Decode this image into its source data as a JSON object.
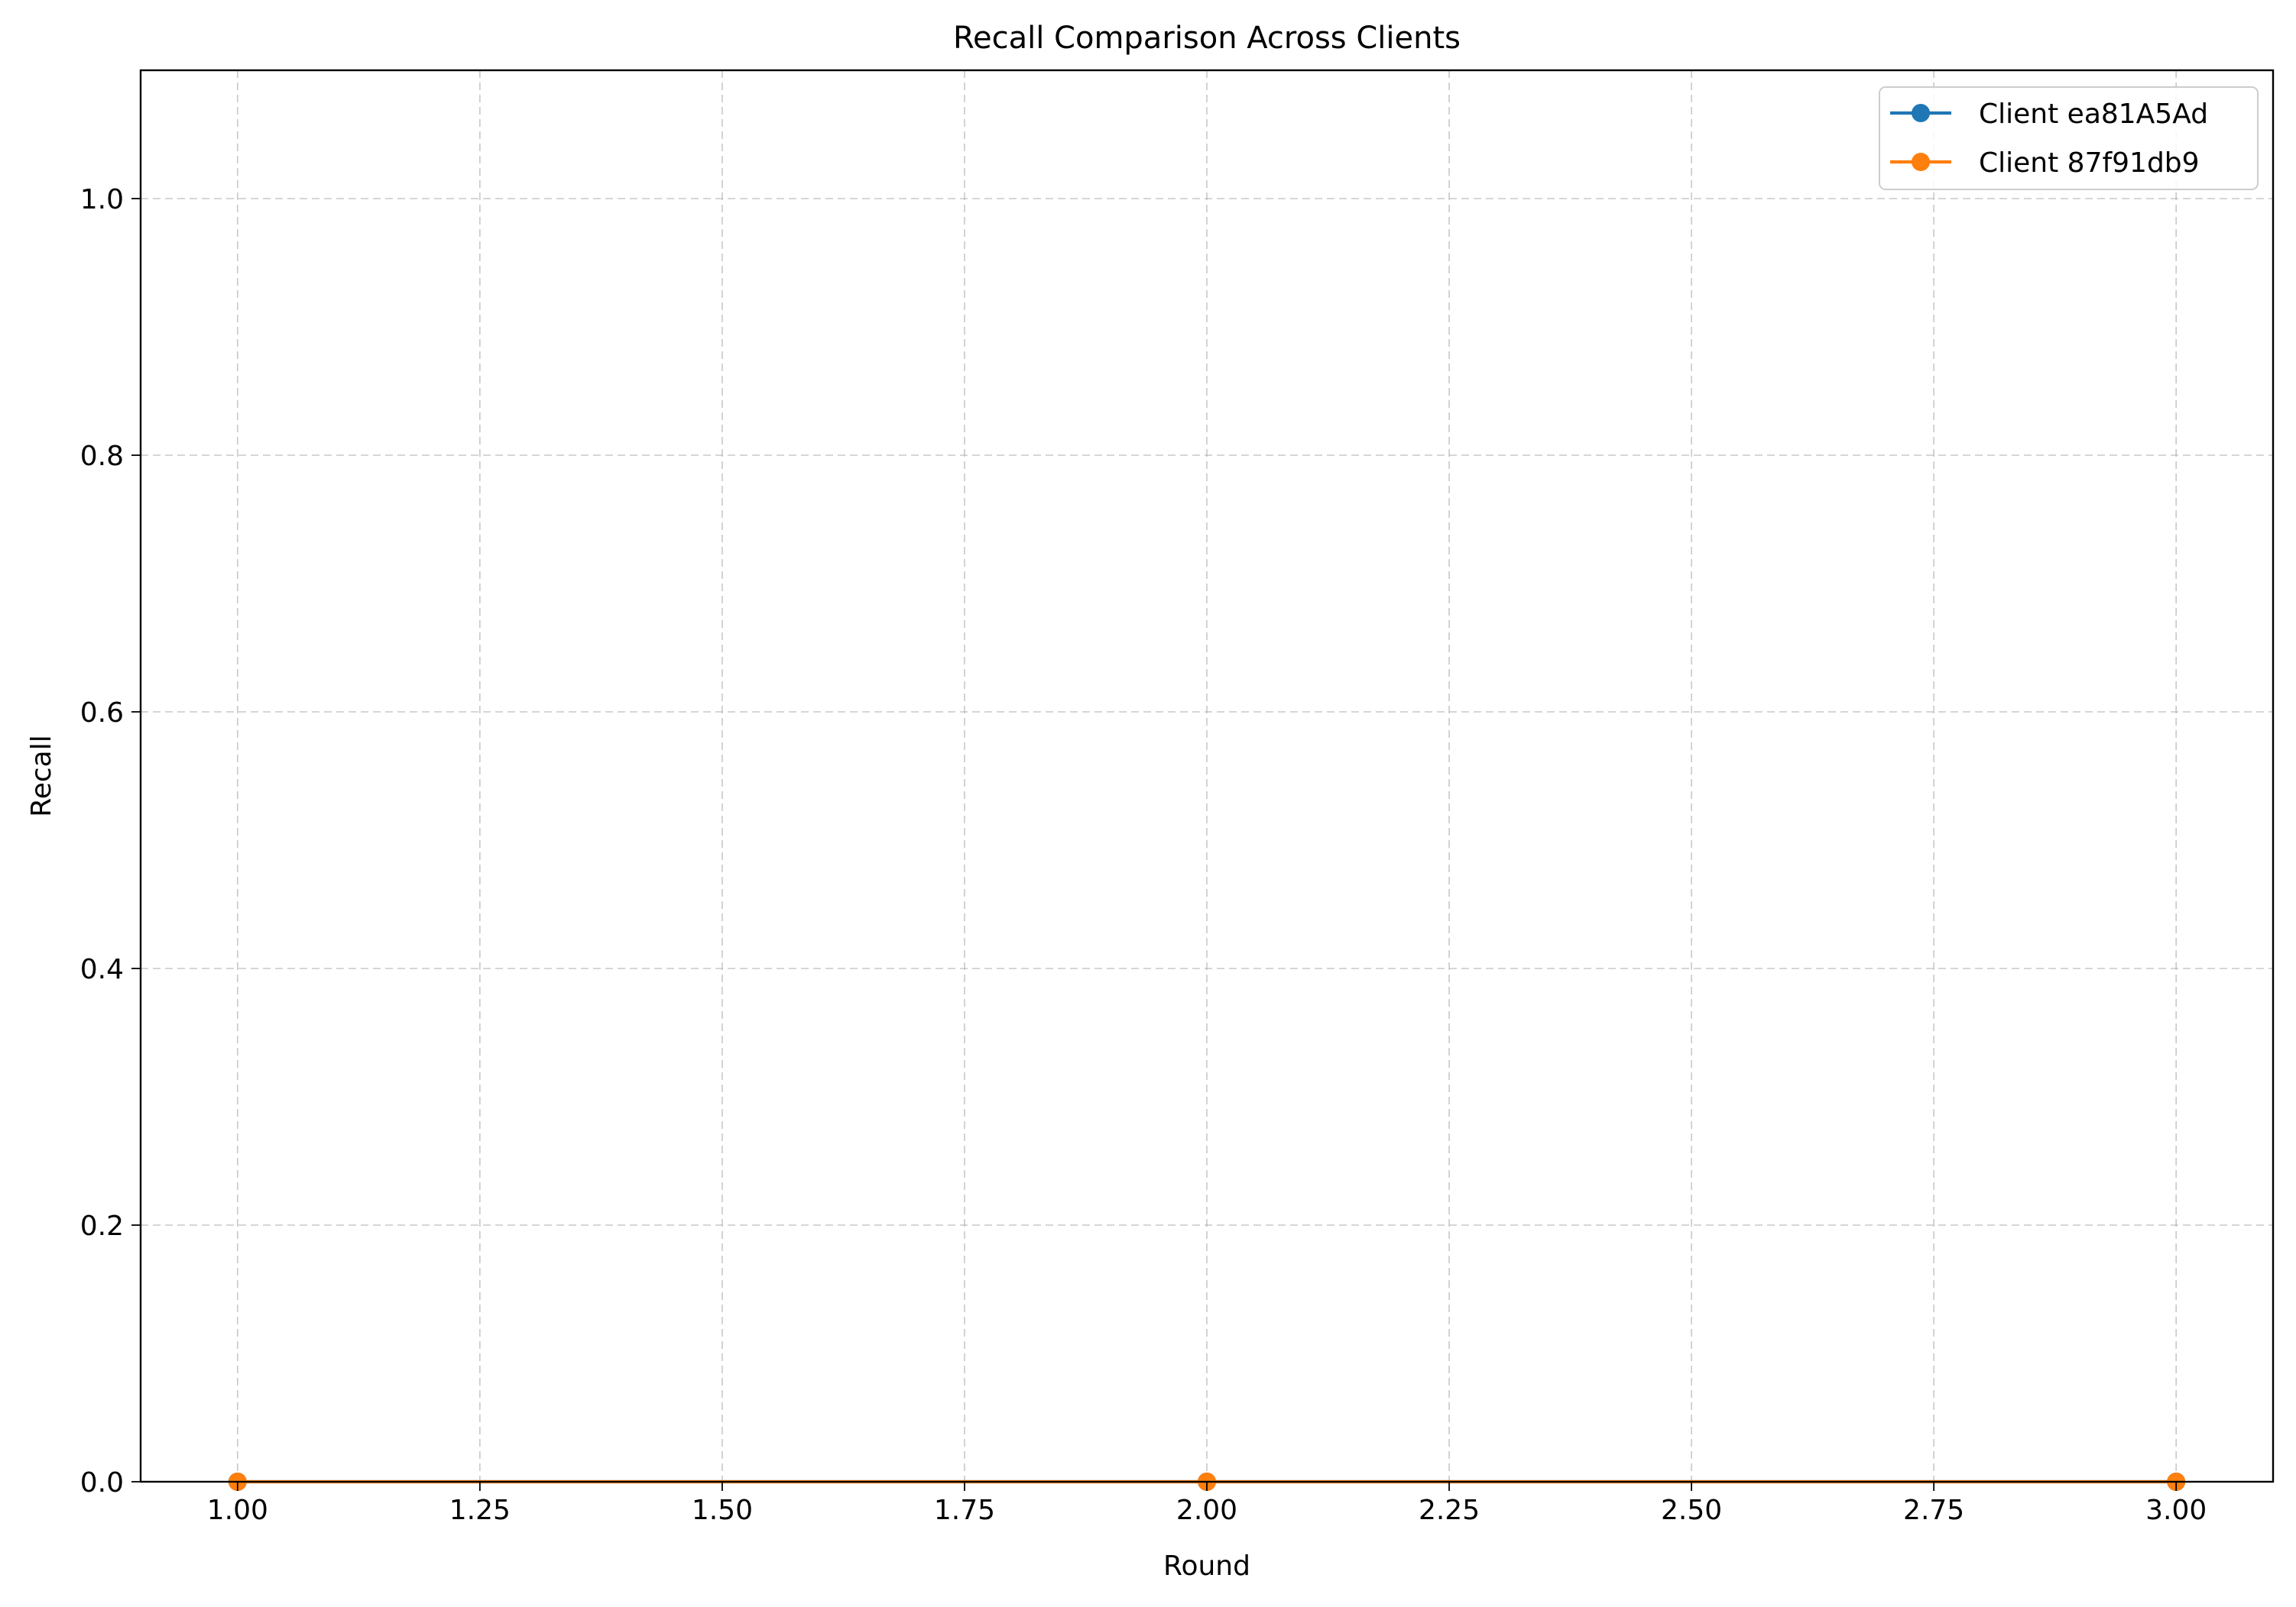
{
  "chart_data": {
    "type": "line",
    "title": "Recall Comparison Across Clients",
    "xlabel": "Round",
    "ylabel": "Recall",
    "xlim": [
      0.9,
      3.1
    ],
    "ylim": [
      0.0,
      1.1
    ],
    "xticks": [
      1.0,
      1.25,
      1.5,
      1.75,
      2.0,
      2.25,
      2.5,
      2.75,
      3.0
    ],
    "xtick_labels": [
      "1.00",
      "1.25",
      "1.50",
      "1.75",
      "2.00",
      "2.25",
      "2.50",
      "2.75",
      "3.00"
    ],
    "yticks": [
      0.0,
      0.2,
      0.4,
      0.6,
      0.8,
      1.0
    ],
    "ytick_labels": [
      "0.0",
      "0.2",
      "0.4",
      "0.6",
      "0.8",
      "1.0"
    ],
    "grid": true,
    "legend_position": "top-right",
    "x": [
      1,
      2,
      3
    ],
    "series": [
      {
        "name": "Client ea81A5Ad",
        "color": "#1f77b4",
        "values": [
          0.0,
          0.0,
          0.0
        ]
      },
      {
        "name": "Client 87f91db9",
        "color": "#ff7f0e",
        "values": [
          0.0,
          0.0,
          0.0
        ]
      }
    ]
  }
}
